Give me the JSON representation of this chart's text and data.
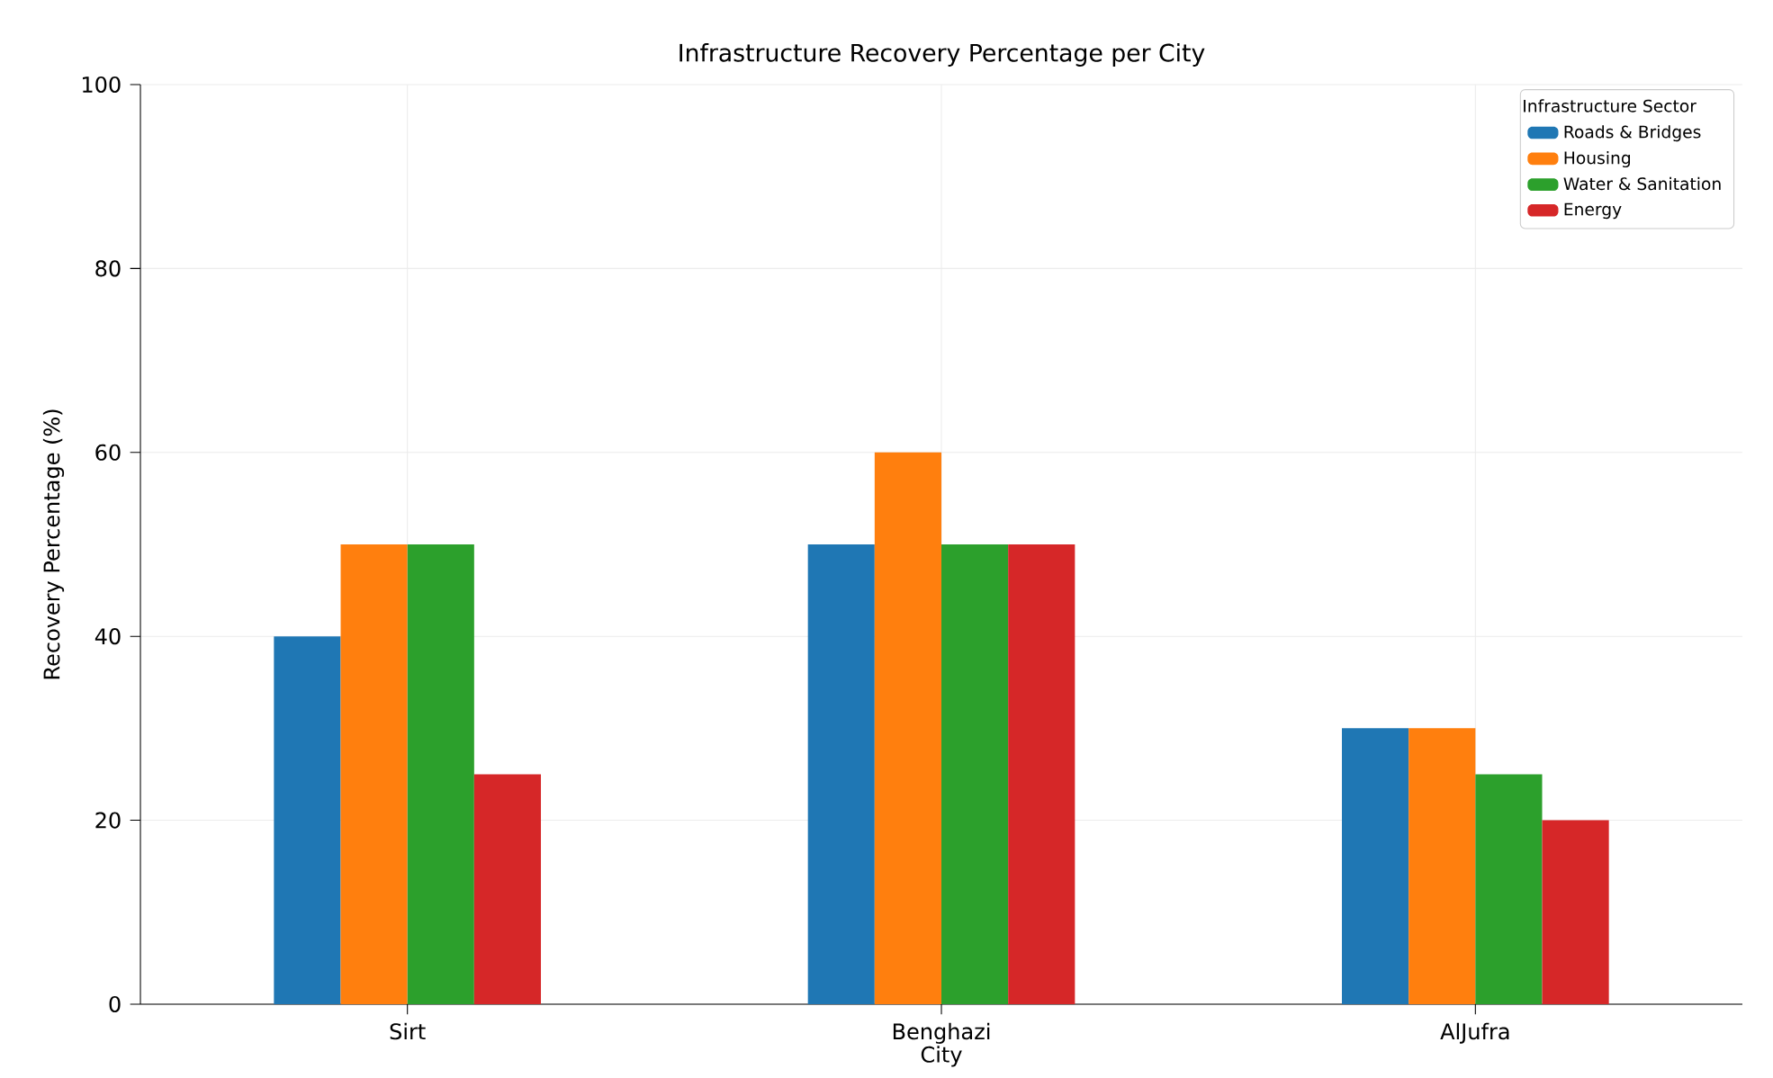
{
  "chart_data": {
    "type": "bar",
    "title": "Infrastructure Recovery Percentage per City",
    "xlabel": "City",
    "ylabel": "Recovery Percentage (%)",
    "legend_title": "Infrastructure Sector",
    "categories": [
      "Sirt",
      "Benghazi",
      "AlJufra"
    ],
    "series": [
      {
        "name": "Roads & Bridges",
        "color": "#1f77b4",
        "values": [
          40,
          50,
          30
        ]
      },
      {
        "name": "Housing",
        "color": "#ff7f0e",
        "values": [
          50,
          60,
          30
        ]
      },
      {
        "name": "Water & Sanitation",
        "color": "#2ca02c",
        "values": [
          50,
          50,
          25
        ]
      },
      {
        "name": "Energy",
        "color": "#d62728",
        "values": [
          25,
          50,
          20
        ]
      }
    ],
    "ylim": [
      0,
      100
    ],
    "yticks": [
      0,
      20,
      40,
      60,
      80,
      100
    ],
    "grid": true,
    "legend": "top right"
  }
}
